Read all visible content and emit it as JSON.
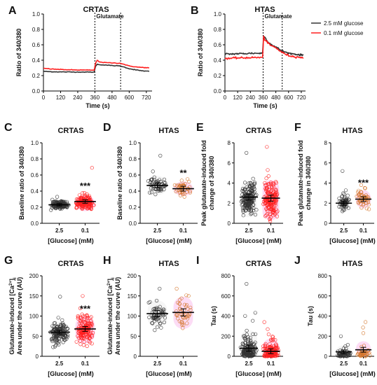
{
  "colors": {
    "black": "#333333",
    "red": "#ff1f1f",
    "pink_fill": "#fbd3f2",
    "grey_fill": "#f4f4f4"
  },
  "chart_data": [
    {
      "id": "A",
      "type": "line",
      "title": "CRTAS",
      "xlabel": "Time (s)",
      "ylabel": "Ratio of 340/380",
      "xlim": [
        0,
        760
      ],
      "ylim": [
        0,
        1.0
      ],
      "xticks": [
        "0",
        "120",
        "240",
        "360",
        "480",
        "600",
        "720"
      ],
      "yticks": [
        "0.0",
        "0.2",
        "0.4",
        "0.6",
        "0.8",
        "1.0"
      ],
      "annotation": "Glutamate",
      "markers": [
        360,
        540
      ],
      "series": [
        {
          "name": "2.5 mM glucose",
          "color": "#333333",
          "x": [
            0,
            60,
            120,
            180,
            240,
            300,
            355,
            365,
            375,
            390,
            420,
            480,
            540,
            600,
            660,
            700,
            740
          ],
          "y": [
            0.255,
            0.25,
            0.248,
            0.247,
            0.246,
            0.246,
            0.245,
            0.32,
            0.35,
            0.34,
            0.34,
            0.33,
            0.325,
            0.29,
            0.27,
            0.26,
            0.255
          ]
        },
        {
          "name": "0.1 mM glucose",
          "color": "#ff1f1f",
          "x": [
            0,
            60,
            120,
            180,
            240,
            300,
            355,
            365,
            375,
            390,
            420,
            480,
            540,
            600,
            660,
            700,
            740
          ],
          "y": [
            0.295,
            0.285,
            0.28,
            0.275,
            0.273,
            0.272,
            0.27,
            0.36,
            0.4,
            0.38,
            0.37,
            0.365,
            0.36,
            0.325,
            0.31,
            0.305,
            0.3
          ]
        }
      ]
    },
    {
      "id": "B",
      "type": "line",
      "title": "HTAS",
      "xlabel": "Time (s)",
      "ylabel": "Ratio of 340/380",
      "xlim": [
        0,
        760
      ],
      "ylim": [
        0,
        1.0
      ],
      "xticks": [
        "0",
        "120",
        "240",
        "360",
        "480",
        "600",
        "720"
      ],
      "yticks": [
        "0.0",
        "0.2",
        "0.4",
        "0.6",
        "0.8",
        "1.0"
      ],
      "annotation": "Glutamate",
      "markers": [
        360,
        540
      ],
      "series": [
        {
          "name": "2.5 mM glucose",
          "color": "#333333",
          "x": [
            0,
            60,
            120,
            180,
            240,
            300,
            355,
            365,
            375,
            390,
            420,
            480,
            540,
            600,
            660,
            700,
            740
          ],
          "y": [
            0.48,
            0.48,
            0.485,
            0.485,
            0.49,
            0.49,
            0.49,
            0.72,
            0.7,
            0.67,
            0.62,
            0.57,
            0.52,
            0.49,
            0.48,
            0.47,
            0.465
          ]
        },
        {
          "name": "0.1 mM glucose",
          "color": "#ff1f1f",
          "x": [
            0,
            60,
            120,
            180,
            240,
            300,
            355,
            365,
            375,
            390,
            420,
            480,
            540,
            600,
            660,
            700,
            740
          ],
          "y": [
            0.425,
            0.425,
            0.43,
            0.43,
            0.435,
            0.435,
            0.435,
            0.7,
            0.67,
            0.65,
            0.6,
            0.56,
            0.5,
            0.46,
            0.445,
            0.44,
            0.425
          ]
        }
      ]
    },
    {
      "id": "C",
      "type": "scatter",
      "title": "CRTAS",
      "xlabel": "[Glucose] (mM)",
      "ylabel": "Baseline ratio of 340/380",
      "categories": [
        "2.5",
        "0.1"
      ],
      "ylim": [
        0,
        1.0
      ],
      "yticks": [
        "0.0",
        "0.2",
        "0.4",
        "0.6",
        "0.8",
        "1.0"
      ],
      "series": [
        {
          "name": "2.5",
          "mean": 0.23,
          "sem": 0.005,
          "n": 150,
          "center": 0.23,
          "spread": 0.025,
          "max": 0.33,
          "min": 0.18
        },
        {
          "name": "0.1",
          "mean": 0.27,
          "sem": 0.007,
          "n": 150,
          "center": 0.25,
          "spread": 0.05,
          "max": 0.69,
          "min": 0.19
        }
      ],
      "significance": "***"
    },
    {
      "id": "D",
      "type": "scatter",
      "title": "HTAS",
      "xlabel": "[Glucose] (mM)",
      "ylabel": "Baseline ratio of 340/380",
      "categories": [
        "2.5",
        "0.1"
      ],
      "ylim": [
        0,
        1.0
      ],
      "yticks": [
        "0.0",
        "0.2",
        "0.4",
        "0.6",
        "0.8",
        "1.0"
      ],
      "series": [
        {
          "name": "2.5",
          "mean": 0.47,
          "sem": 0.01,
          "n": 60,
          "center": 0.47,
          "spread": 0.06,
          "max": 0.84,
          "min": 0.36
        },
        {
          "name": "0.1",
          "mean": 0.43,
          "sem": 0.01,
          "n": 45,
          "center": 0.43,
          "spread": 0.045,
          "max": 0.55,
          "min": 0.33
        }
      ],
      "significance": "**"
    },
    {
      "id": "E",
      "type": "scatter",
      "title": "CRTAS",
      "xlabel": "[Glucose] (mM)",
      "ylabel": "Peak glutamate-induced fold change of 340/380",
      "categories": [
        "2.5",
        "0.1"
      ],
      "ylim": [
        0,
        8
      ],
      "yticks": [
        "0",
        "2",
        "4",
        "6",
        "8"
      ],
      "series": [
        {
          "name": "2.5",
          "mean": 2.6,
          "sem": 0.1,
          "n": 170,
          "center": 2.4,
          "spread": 0.9,
          "max": 7.0,
          "min": 1.0
        },
        {
          "name": "0.1",
          "mean": 2.5,
          "sem": 0.1,
          "n": 170,
          "center": 2.3,
          "spread": 1.0,
          "max": 7.6,
          "min": 1.0
        }
      ],
      "significance": ""
    },
    {
      "id": "F",
      "type": "scatter",
      "title": "HTAS",
      "xlabel": "[Glucose] (mM)",
      "ylabel": "Peak glutamate-induced fold change in 340/380",
      "categories": [
        "2.5",
        "0.1"
      ],
      "ylim": [
        0,
        8
      ],
      "yticks": [
        "0",
        "2",
        "4",
        "6",
        "8"
      ],
      "series": [
        {
          "name": "2.5",
          "mean": 2.0,
          "sem": 0.07,
          "n": 60,
          "center": 1.95,
          "spread": 0.4,
          "max": 5.2,
          "min": 1.2
        },
        {
          "name": "0.1",
          "mean": 2.4,
          "sem": 0.08,
          "n": 50,
          "center": 2.4,
          "spread": 0.45,
          "max": 3.8,
          "min": 1.4
        }
      ],
      "significance": "***"
    },
    {
      "id": "G",
      "type": "scatter",
      "title": "CRTAS",
      "xlabel": "[Glucose] (mM)",
      "ylabel": "Glutamate-induced [Ca2+]i Area under the curve (AU)",
      "ylabel_line1_pre": "Glutamate-induced [Ca",
      "ylabel_line1_sup": "2+",
      "ylabel_line1_post": "]",
      "ylabel_line1_sub": "i",
      "ylabel_line2": "Area under the curve (AU)",
      "categories": [
        "2.5",
        "0.1"
      ],
      "ylim": [
        0,
        200
      ],
      "yticks": [
        "0",
        "50",
        "100",
        "150",
        "200"
      ],
      "series": [
        {
          "name": "2.5",
          "mean": 60,
          "sem": 1.5,
          "n": 150,
          "center": 58,
          "spread": 14,
          "max": 148,
          "min": 28
        },
        {
          "name": "0.1",
          "mean": 68,
          "sem": 2.0,
          "n": 150,
          "center": 66,
          "spread": 17,
          "max": 150,
          "min": 30
        }
      ],
      "significance": "***"
    },
    {
      "id": "H",
      "type": "scatter",
      "title": "HTAS",
      "xlabel": "[Glucose] (mM)",
      "ylabel": "Glutamate-induced [Ca2+]i Area under the curve (AU)",
      "ylabel_line1_pre": "Glutamate-induced [Ca",
      "ylabel_line1_sup": "2+",
      "ylabel_line1_post": "]",
      "ylabel_line1_sub": "i",
      "ylabel_line2": "Area under the curve (AU)",
      "categories": [
        "2.5",
        "0.1"
      ],
      "ylim": [
        0,
        200
      ],
      "yticks": [
        "0",
        "50",
        "100",
        "150",
        "200"
      ],
      "series": [
        {
          "name": "2.5",
          "mean": 106,
          "sem": 2.5,
          "n": 60,
          "center": 105,
          "spread": 17,
          "max": 168,
          "min": 65
        },
        {
          "name": "0.1",
          "mean": 109,
          "sem": 3.0,
          "n": 45,
          "center": 108,
          "spread": 20,
          "max": 168,
          "min": 70
        }
      ],
      "significance": ""
    },
    {
      "id": "I",
      "type": "scatter",
      "title": "CRTAS",
      "xlabel": "[Glucose] (mM)",
      "ylabel": "Tau (s)",
      "categories": [
        "2.5",
        "0.1"
      ],
      "ylim": [
        0,
        800
      ],
      "yticks": [
        "0",
        "200",
        "400",
        "600",
        "800"
      ],
      "series": [
        {
          "name": "2.5",
          "mean": 80,
          "sem": 10,
          "n": 160,
          "center": 20,
          "spread": 120,
          "max": 720,
          "min": 0
        },
        {
          "name": "0.1",
          "mean": 50,
          "sem": 8,
          "n": 150,
          "center": 15,
          "spread": 80,
          "max": 340,
          "min": 0
        }
      ],
      "significance": ""
    },
    {
      "id": "J",
      "type": "scatter",
      "title": "HTAS",
      "xlabel": "[Glucose] (mM)",
      "ylabel": "Tau (s)",
      "categories": [
        "2.5",
        "0.1"
      ],
      "ylim": [
        0,
        800
      ],
      "yticks": [
        "0",
        "200",
        "400",
        "600",
        "800"
      ],
      "series": [
        {
          "name": "2.5",
          "mean": 45,
          "sem": 6,
          "n": 60,
          "center": 30,
          "spread": 40,
          "max": 200,
          "min": 0
        },
        {
          "name": "0.1",
          "mean": 65,
          "sem": 8,
          "n": 45,
          "center": 50,
          "spread": 50,
          "max": 230,
          "min": 0
        }
      ],
      "significance": ""
    }
  ]
}
